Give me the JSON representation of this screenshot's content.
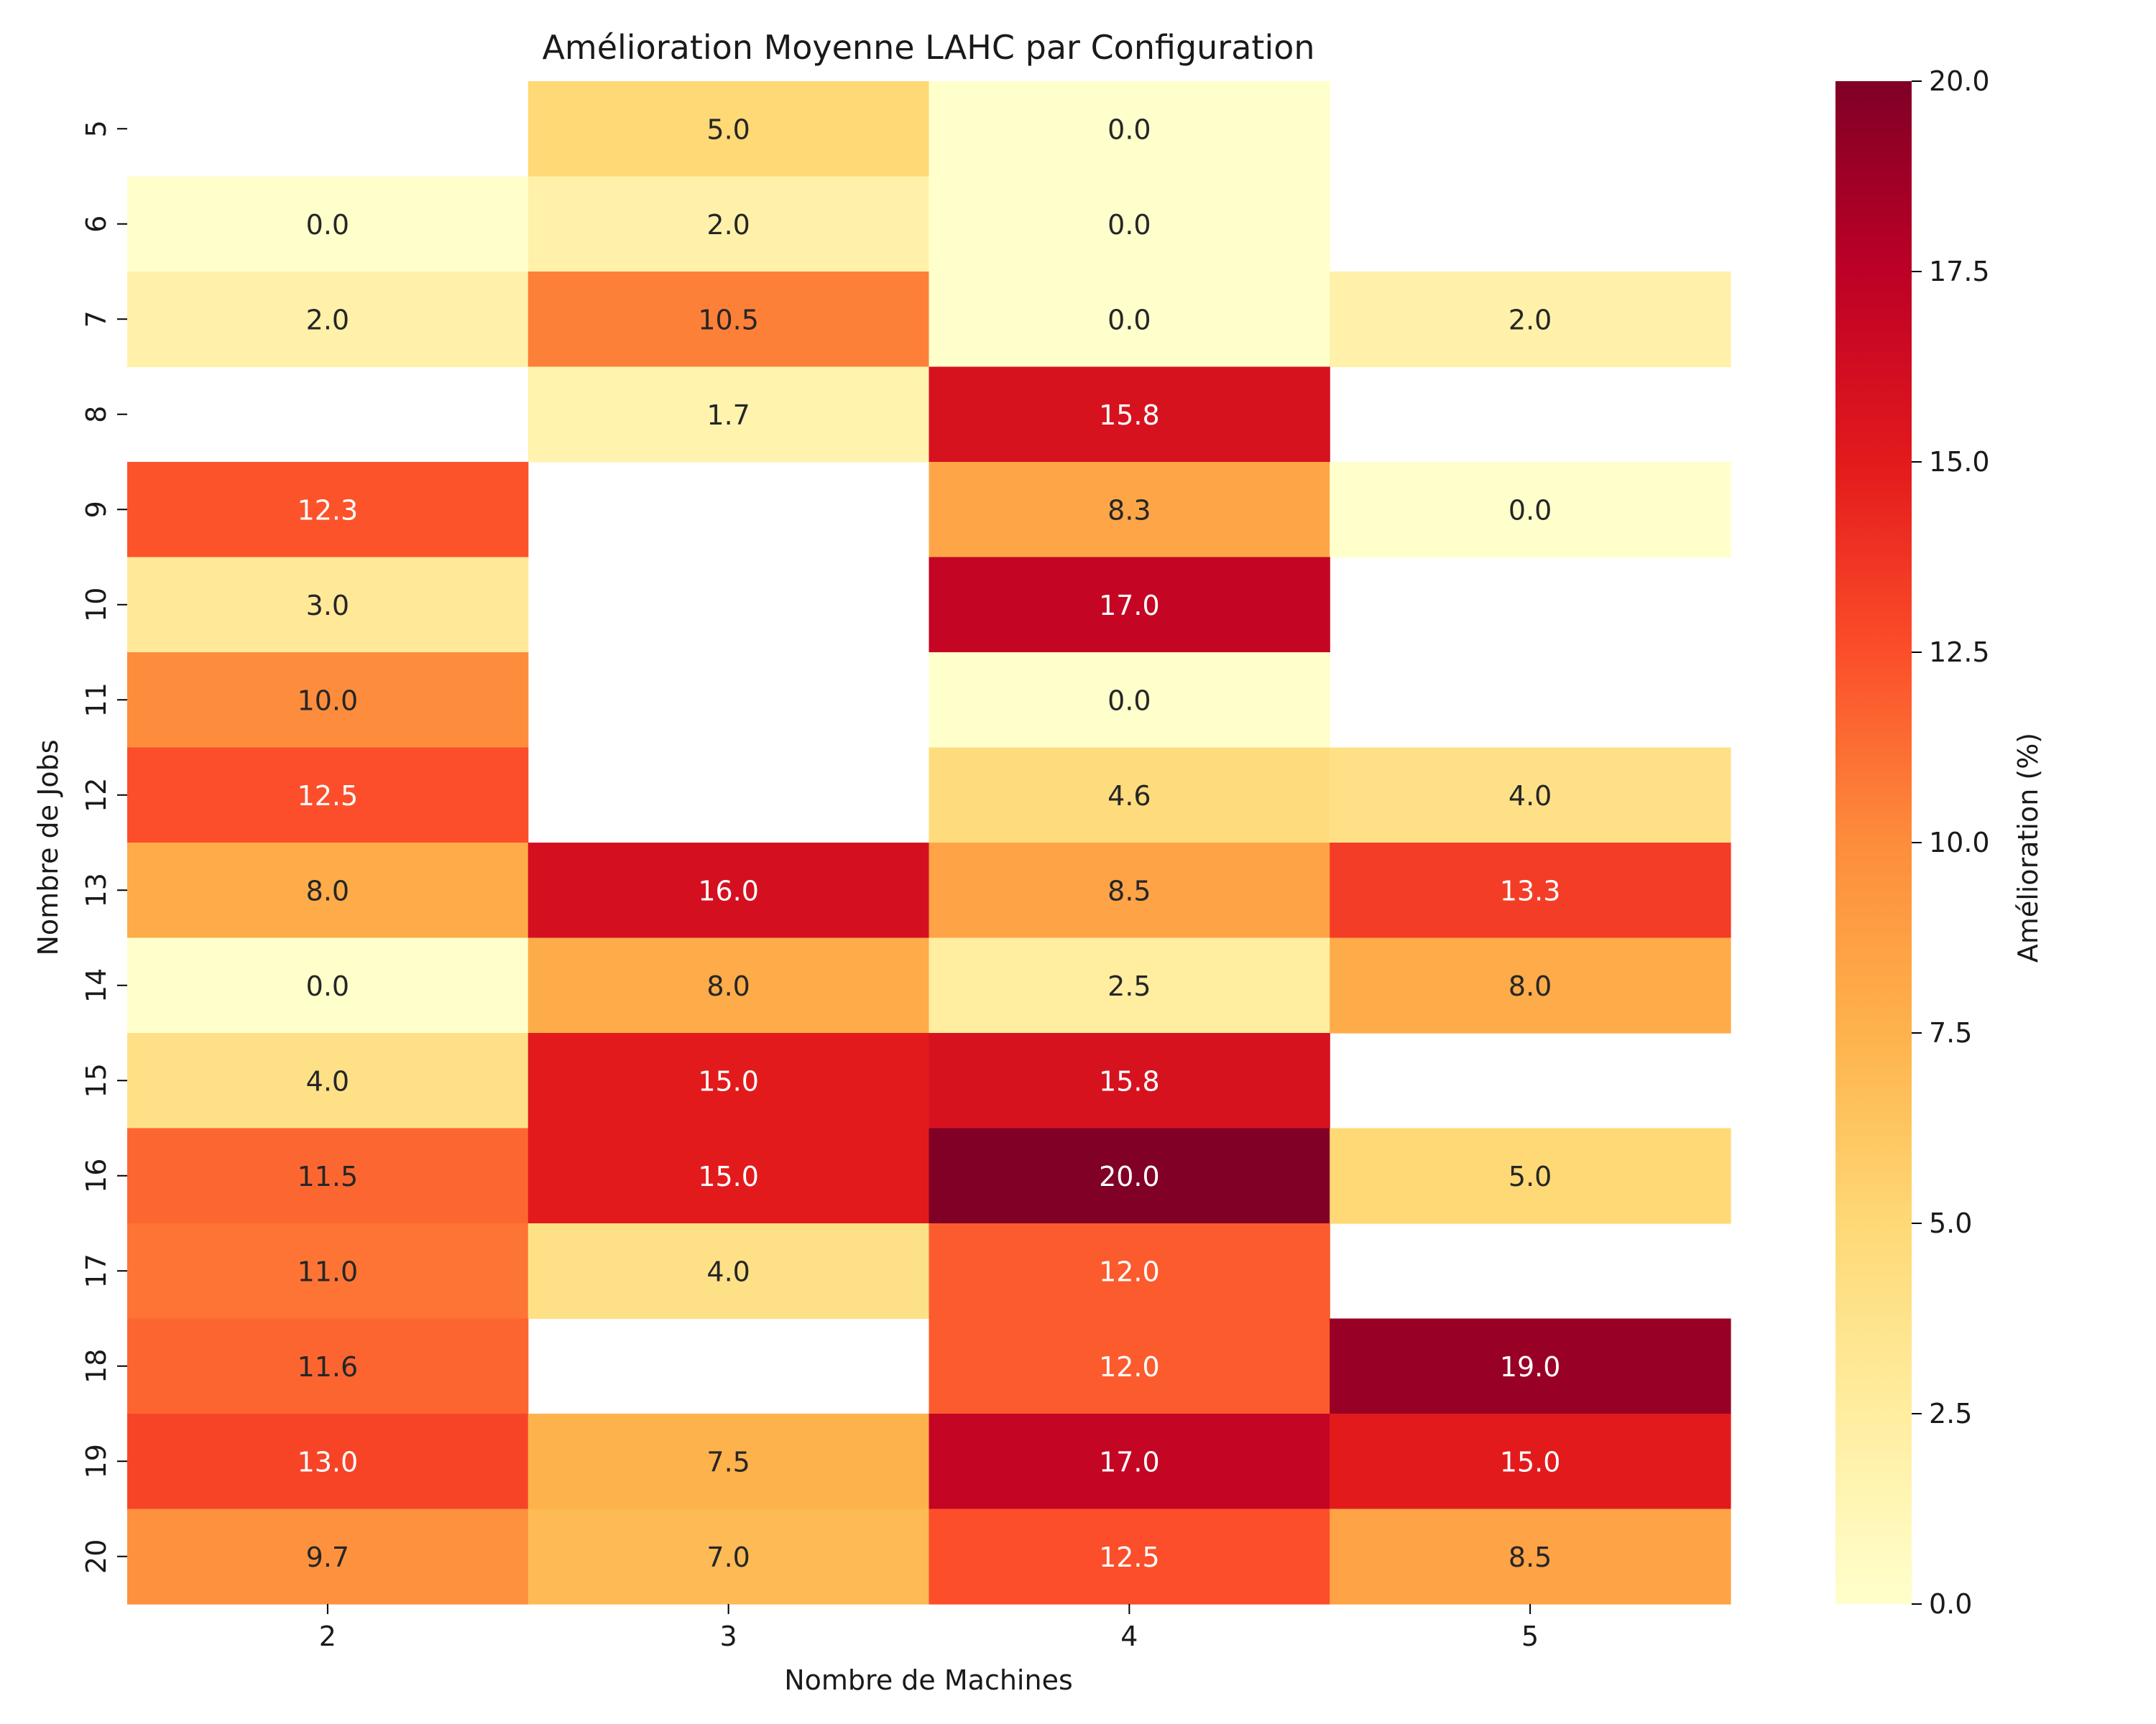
{
  "chart_data": {
    "type": "heatmap",
    "title": "Amélioration Moyenne LAHC par Configuration",
    "xlabel": "Nombre de Machines",
    "ylabel": "Nombre de Jobs",
    "x_categories": [
      "2",
      "3",
      "4",
      "5"
    ],
    "y_categories": [
      "5",
      "6",
      "7",
      "8",
      "9",
      "10",
      "11",
      "12",
      "13",
      "14",
      "15",
      "16",
      "17",
      "18",
      "19",
      "20"
    ],
    "values": [
      [
        null,
        5.0,
        0.0,
        null
      ],
      [
        0.0,
        2.0,
        0.0,
        null
      ],
      [
        2.0,
        10.5,
        0.0,
        2.0
      ],
      [
        null,
        1.7,
        15.8,
        null
      ],
      [
        12.3,
        null,
        8.3,
        0.0
      ],
      [
        3.0,
        null,
        17.0,
        null
      ],
      [
        10.0,
        null,
        0.0,
        null
      ],
      [
        12.5,
        null,
        4.6,
        4.0
      ],
      [
        8.0,
        16.0,
        8.5,
        13.3
      ],
      [
        0.0,
        8.0,
        2.5,
        8.0
      ],
      [
        4.0,
        15.0,
        15.8,
        null
      ],
      [
        11.5,
        15.0,
        20.0,
        5.0
      ],
      [
        11.0,
        4.0,
        12.0,
        null
      ],
      [
        11.6,
        null,
        12.0,
        19.0
      ],
      [
        13.0,
        7.5,
        17.0,
        15.0
      ],
      [
        9.7,
        7.0,
        12.5,
        8.5
      ]
    ],
    "value_format": "0.0",
    "colorbar": {
      "label": "Amélioration (%)",
      "range": [
        0,
        20
      ],
      "ticks": [
        "0.0",
        "2.5",
        "5.0",
        "7.5",
        "10.0",
        "12.5",
        "15.0",
        "17.5",
        "20.0"
      ],
      "colormap": [
        "#ffffcc",
        "#ffeda0",
        "#fed976",
        "#feb24c",
        "#fd8d3c",
        "#fc4e2a",
        "#e31a1c",
        "#bd0026",
        "#800026"
      ]
    },
    "grid": false
  }
}
